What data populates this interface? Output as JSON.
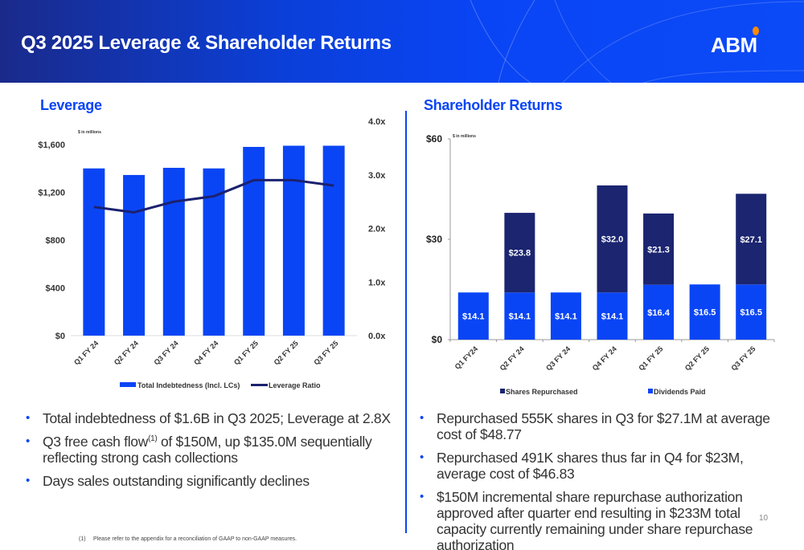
{
  "header": {
    "title": "Q3 2025 Leverage & Shareholder Returns",
    "logo": "ABM",
    "brand_color": "#0a45f5",
    "accent_color": "#ff8a00"
  },
  "leverage": {
    "section_title": "Leverage",
    "bullets": [
      {
        "text": "Total indebtedness of $1.6B in Q3 2025; Leverage at 2.8X"
      },
      {
        "text_before": "Q3 free cash flow",
        "sup": "(1)",
        "text_after": " of $150M, up $135.0M sequentially reflecting strong cash collections"
      },
      {
        "text": "Days sales outstanding significantly declines"
      }
    ],
    "footnote": {
      "marker": "(1)",
      "text": "Please refer to the appendix for a reconciliation of GAAP to non-GAAP measures."
    }
  },
  "returns": {
    "section_title": "Shareholder Returns",
    "bullets": [
      {
        "text": "Repurchased 555K shares in Q3 for $27.1M at average cost of $48.77"
      },
      {
        "text": "Repurchased 491K shares thus far in Q4 for $23M, average cost of $46.83"
      },
      {
        "text": "$150M incremental share repurchase authorization approved after quarter end resulting in $233M total capacity currently remaining under share repurchase authorization"
      }
    ]
  },
  "page_number": "10",
  "chart_data": [
    {
      "type": "bar",
      "title": "Leverage",
      "note": "$ in millions",
      "categories": [
        "Q1 FY 24",
        "Q2 FY 24",
        "Q3 FY 24",
        "Q4 FY 24",
        "Q1 FY 25",
        "Q2 FY 25",
        "Q3 FY 25"
      ],
      "series": [
        {
          "name": "Total Indebtedness (Incl. LCs)",
          "type": "bar",
          "axis": "left",
          "color": "#0a45f5",
          "values": [
            1400,
            1345,
            1405,
            1400,
            1580,
            1590,
            1590
          ]
        },
        {
          "name": "Leverage Ratio",
          "type": "line",
          "axis": "right",
          "color": "#1b2170",
          "values": [
            2.4,
            2.3,
            2.5,
            2.6,
            2.9,
            2.9,
            2.8
          ]
        }
      ],
      "ylim": [
        0,
        1600
      ],
      "yticks": [
        "$0",
        "$400",
        "$800",
        "$1,200",
        "$1,600"
      ],
      "y2lim": [
        0,
        4
      ],
      "y2ticks": [
        "0.0x",
        "1.0x",
        "2.0x",
        "3.0x",
        "4.0x"
      ],
      "legend": "bottom",
      "grid": false
    },
    {
      "type": "bar",
      "stacked": true,
      "title": "Shareholder Returns",
      "note": "$ in millions",
      "categories": [
        "Q1 FY24",
        "Q2 FY 24",
        "Q3 FY 24",
        "Q4 FY 24",
        "Q1 FY 25",
        "Q2 FY 25",
        "Q3 FY 25"
      ],
      "series": [
        {
          "name": "Dividends Paid",
          "color": "#0a45f5",
          "values": [
            14.1,
            14.1,
            14.1,
            14.1,
            16.4,
            16.5,
            16.5
          ],
          "labels": [
            "$14.1",
            "$14.1",
            "$14.1",
            "$14.1",
            "$16.4",
            "$16.5",
            "$16.5"
          ]
        },
        {
          "name": "Shares Repurchased",
          "color": "#1b2570",
          "values": [
            0,
            23.8,
            0,
            32.0,
            21.3,
            0,
            27.1
          ],
          "labels": [
            "",
            "$23.8",
            "",
            "$32.0",
            "$21.3",
            "",
            "$27.1"
          ]
        }
      ],
      "legend_order": [
        "Shares Repurchased",
        "Dividends Paid"
      ],
      "ylim": [
        0,
        60
      ],
      "yticks": [
        "$0",
        "$30",
        "$60"
      ],
      "legend": "bottom",
      "grid": false
    }
  ]
}
